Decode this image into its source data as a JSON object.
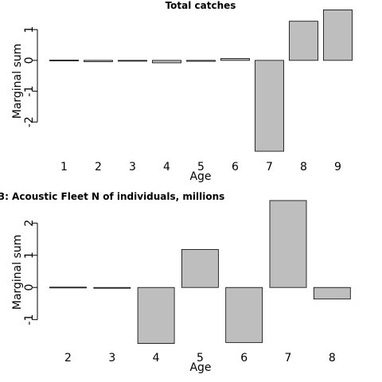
{
  "chart_data": [
    {
      "type": "bar",
      "title": "Total catches",
      "xlabel": "Age",
      "ylabel": "Marginal sum",
      "categories": [
        "1",
        "2",
        "3",
        "4",
        "5",
        "6",
        "7",
        "8",
        "9"
      ],
      "values": [
        0.01,
        -0.04,
        -0.02,
        -0.08,
        -0.03,
        0.06,
        -2.95,
        1.27,
        1.64
      ],
      "ylim": [
        -3.0,
        1.65
      ],
      "yticks": [
        -2,
        -1,
        0,
        1
      ],
      "ytick_labels": [
        "-2",
        "-1",
        "0",
        "1"
      ],
      "bar_color": "#bebebe",
      "grid": false
    },
    {
      "type": "bar",
      "title": "3: Acoustic Fleet   N of individuals, millions",
      "xlabel": "Age",
      "ylabel": "Marginal sum",
      "categories": [
        "2",
        "3",
        "4",
        "5",
        "6",
        "7",
        "8"
      ],
      "values": [
        0.01,
        -0.01,
        -1.74,
        1.18,
        -1.71,
        2.7,
        -0.36
      ],
      "ylim": [
        -1.75,
        2.7
      ],
      "yticks": [
        -1,
        0,
        1,
        2
      ],
      "ytick_labels": [
        "-1",
        "0",
        "1",
        "2"
      ],
      "bar_color": "#bebebe",
      "grid": false
    }
  ]
}
